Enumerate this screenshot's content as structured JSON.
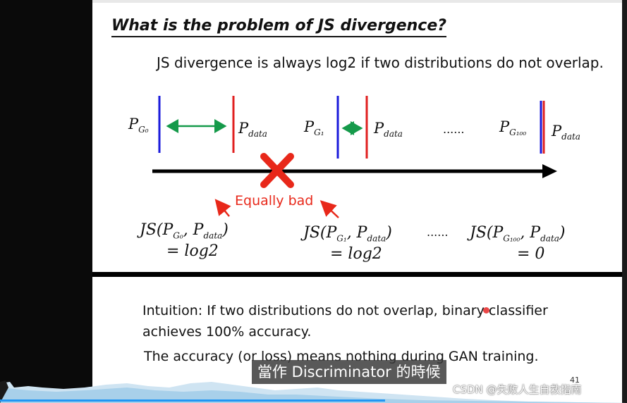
{
  "slide": {
    "title": "What is the problem of JS divergence?",
    "subtitle": "JS divergence is always log2 if two distributions do not overlap.",
    "pg0": "P",
    "pg0_sub": "G₀",
    "pdata1": "P",
    "pdata1_sub": "data",
    "pg1": "P",
    "pg1_sub": "G₁",
    "pdata2": "P",
    "pdata2_sub": "data",
    "dots_top": "......",
    "pg100": "P",
    "pg100_sub": "G₁₀₀",
    "pdata3": "P",
    "pdata3_sub": "data",
    "equally_bad": "Equally bad",
    "js0_a": "JS(P",
    "js0_sub": "G₀",
    "js0_b": ", P",
    "js0_data": "data",
    "js0_c": ")",
    "js0_val": "= log2",
    "js1_a": "JS(P",
    "js1_sub": "G₁",
    "js1_b": ", P",
    "js1_data": "data",
    "js1_c": ")",
    "js1_val": "= log2",
    "dots_bottom": "......",
    "js100_a": "JS(P",
    "js100_sub": "G₁₀₀",
    "js100_b": ", P",
    "js100_data": "data",
    "js100_c": ")",
    "js100_val": "= 0",
    "intuition_line1": "Intuition: If two distributions do not overlap, binary classifier",
    "intuition_line2": "achieves 100% accuracy.",
    "accuracy_line": "The accuracy (or loss) means nothing during GAN training.",
    "page_number": "41"
  },
  "video": {
    "caption": "當作 Discriminator 的時候",
    "watermark": "CSDN @失败人生自救指南"
  },
  "colors": {
    "blue_line": "#1a1adb",
    "red_line": "#e02020",
    "green_arrow": "#159a4a",
    "red_text": "#e8281a",
    "progress": "#2196f3"
  }
}
